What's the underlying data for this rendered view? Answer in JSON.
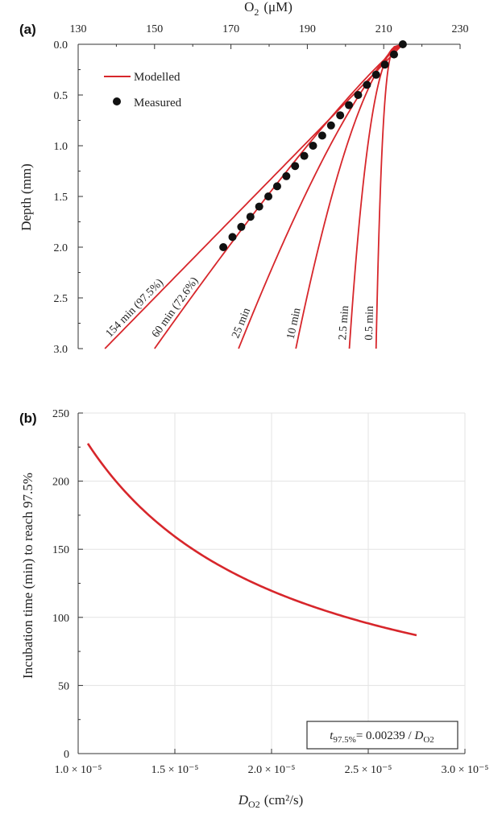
{
  "colors": {
    "modelled": "#d7262b",
    "measured": "#111111",
    "axis": "#333333",
    "grid": "#e3e3e3"
  },
  "chart_data": [
    {
      "panel": "(a)",
      "type": "line",
      "title": "",
      "xlabel": "O",
      "xlabel_sub": "2",
      "xlabel_unit": "(μM)",
      "ylabel": "Depth (mm)",
      "xlim": [
        130,
        230
      ],
      "ylim": [
        0,
        3
      ],
      "x_ticks": [
        130,
        150,
        170,
        190,
        210,
        230
      ],
      "x_tick_labels": [
        "130",
        "150",
        "170",
        "190",
        "210",
        "230"
      ],
      "y_ticks": [
        0,
        0.5,
        1,
        1.5,
        2,
        2.5,
        3
      ],
      "y_tick_labels": [
        "0.0",
        "0.5",
        "1.0",
        "1.5",
        "2.0",
        "2.5",
        "3.0"
      ],
      "legend": {
        "placement": "top-left",
        "entries": [
          "Modelled",
          "Measured"
        ]
      },
      "series": [
        {
          "name": "154 min (97.5%)",
          "label": "154 min (97.5%)",
          "surface_o2": 215,
          "deep_o2": 137,
          "shape": 1.0
        },
        {
          "name": "60 min (72.6%)",
          "label": "60 min (72.6%)",
          "surface_o2": 215,
          "deep_o2": 150,
          "shape": 1.15
        },
        {
          "name": "25 min",
          "label": "25 min",
          "surface_o2": 215,
          "deep_o2": 172,
          "shape": 1.35
        },
        {
          "name": "10 min",
          "label": "10 min",
          "surface_o2": 215,
          "deep_o2": 187,
          "shape": 1.7
        },
        {
          "name": "2.5 min",
          "label": "2.5 min",
          "surface_o2": 215,
          "deep_o2": 201,
          "shape": 2.6
        },
        {
          "name": "0.5 min",
          "label": "0.5 min",
          "surface_o2": 215,
          "deep_o2": 208,
          "shape": 4.2
        }
      ],
      "measured": {
        "name": "Measured",
        "depth": [
          0.0,
          0.1,
          0.2,
          0.3,
          0.4,
          0.5,
          0.6,
          0.7,
          0.8,
          0.9,
          1.0,
          1.1,
          1.2,
          1.3,
          1.4,
          1.5,
          1.6,
          1.7,
          1.8,
          1.9,
          2.0
        ],
        "o2": [
          215.0,
          212.7,
          210.3,
          208.0,
          205.6,
          203.3,
          200.9,
          198.6,
          196.2,
          193.9,
          191.5,
          189.2,
          186.8,
          184.5,
          182.1,
          179.8,
          177.4,
          175.1,
          172.7,
          170.4,
          168.0
        ]
      }
    },
    {
      "panel": "(b)",
      "type": "line",
      "title": "",
      "xlabel": "D",
      "xlabel_sub": "O2",
      "xlabel_unit": "(cm²/s)",
      "ylabel": "Incubation time (min) to reach 97.5%",
      "xlim": [
        1e-05,
        3e-05
      ],
      "ylim": [
        0,
        250
      ],
      "grid": true,
      "x_ticks": [
        1e-05,
        1.5e-05,
        2e-05,
        2.5e-05,
        3e-05
      ],
      "x_tick_labels": [
        "1.0 × 10⁻⁵",
        "1.5 × 10⁻⁵",
        "2.0 × 10⁻⁵",
        "2.5 × 10⁻⁵",
        "3.0 × 10⁻⁵"
      ],
      "y_ticks": [
        0,
        50,
        100,
        150,
        200,
        250
      ],
      "y_tick_labels": [
        "0",
        "50",
        "100",
        "150",
        "200",
        "250"
      ],
      "series": [
        {
          "name": "t97.5% = 0.00239 / DO2",
          "x": [
            1.05e-05,
            1.2e-05,
            1.35e-05,
            1.5e-05,
            1.65e-05,
            1.8e-05,
            1.95e-05,
            2.1e-05,
            2.25e-05,
            2.4e-05,
            2.55e-05,
            2.75e-05
          ],
          "values": [
            227.6,
            199.2,
            177.0,
            159.3,
            144.8,
            132.8,
            122.6,
            113.8,
            106.2,
            99.6,
            93.7,
            86.9
          ]
        }
      ],
      "annotation": {
        "t": "t",
        "t_sub": "97.5%",
        "eq": "= 0.00239 / ",
        "d": "D",
        "d_sub": "O2",
        "placement": "bottom-right"
      }
    }
  ]
}
